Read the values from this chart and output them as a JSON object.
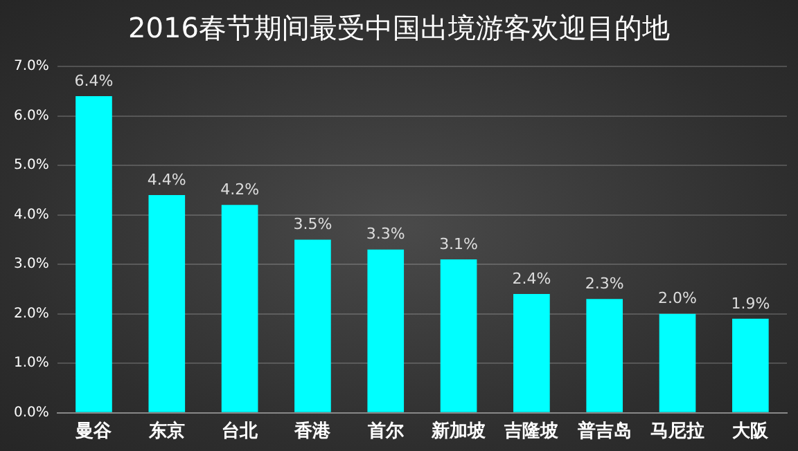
{
  "chart_data": {
    "type": "bar",
    "title": "2016春节期间最受中国出境游客欢迎目的地",
    "categories": [
      "曼谷",
      "东京",
      "台北",
      "香港",
      "首尔",
      "新加坡",
      "吉隆坡",
      "普吉岛",
      "马尼拉",
      "大阪"
    ],
    "values": [
      6.4,
      4.4,
      4.2,
      3.5,
      3.3,
      3.1,
      2.4,
      2.3,
      2.0,
      1.9
    ],
    "value_labels": [
      "6.4%",
      "4.4%",
      "4.2%",
      "3.5%",
      "3.3%",
      "3.1%",
      "2.4%",
      "2.3%",
      "2.0%",
      "1.9%"
    ],
    "color": "#00ffff",
    "ylim": [
      0,
      7
    ],
    "yticks": [
      {
        "value": 0,
        "label": "0.0%"
      },
      {
        "value": 1,
        "label": "1.0%"
      },
      {
        "value": 2,
        "label": "2.0%"
      },
      {
        "value": 3,
        "label": "3.0%"
      },
      {
        "value": 4,
        "label": "4.0%"
      },
      {
        "value": 5,
        "label": "5.0%"
      },
      {
        "value": 6,
        "label": "6.0%"
      },
      {
        "value": 7,
        "label": "7.0%"
      }
    ],
    "grid": "y"
  }
}
